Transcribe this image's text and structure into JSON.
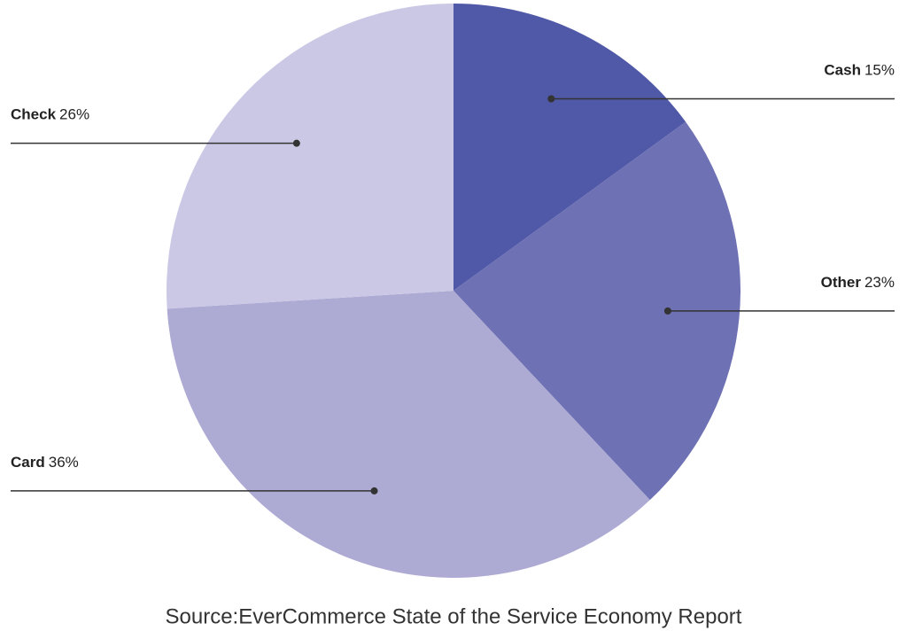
{
  "chart_data": {
    "type": "pie",
    "categories": [
      "Cash",
      "Other",
      "Card",
      "Check"
    ],
    "values": [
      15,
      23,
      36,
      26
    ],
    "value_labels": [
      "15%",
      "23%",
      "36%",
      "26%"
    ],
    "colors": [
      "#5058a8",
      "#6e71b3",
      "#adaad4",
      "#cbc8e5"
    ],
    "source": "Source:EverCommerce State of the Service Economy Report"
  }
}
